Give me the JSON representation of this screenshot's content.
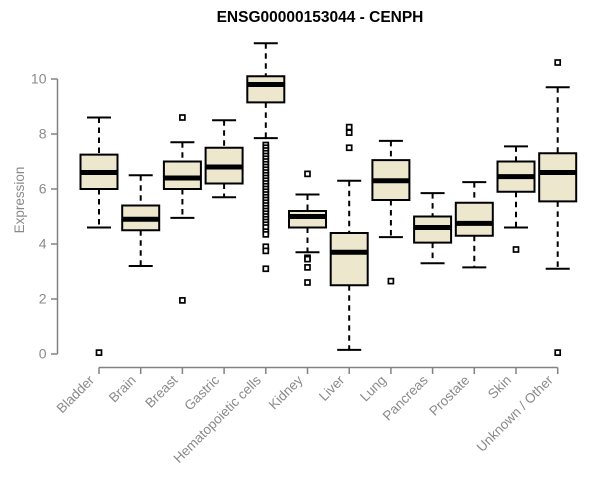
{
  "chart_data": {
    "type": "boxplot",
    "title": "ENSG00000153044 - CENPH",
    "ylabel": "Expression",
    "xlabel": "",
    "ylim": [
      0,
      11.5
    ],
    "yticks": [
      0,
      2,
      4,
      6,
      8,
      10
    ],
    "grid": false,
    "legend": "none",
    "categories": [
      "Bladder",
      "Brain",
      "Breast",
      "Gastric",
      "Hematopoietic cells",
      "Kidney",
      "Liver",
      "Lung",
      "Pancreas",
      "Prostate",
      "Skin",
      "Unknown / Other"
    ],
    "boxes": [
      {
        "category": "Bladder",
        "whisker_low": 4.6,
        "q1": 6.0,
        "median": 6.6,
        "q3": 7.25,
        "whisker_high": 8.6,
        "outliers": [
          0.05
        ]
      },
      {
        "category": "Brain",
        "whisker_low": 3.2,
        "q1": 4.5,
        "median": 4.9,
        "q3": 5.4,
        "whisker_high": 6.5,
        "outliers": []
      },
      {
        "category": "Breast",
        "whisker_low": 4.95,
        "q1": 6.0,
        "median": 6.4,
        "q3": 7.0,
        "whisker_high": 7.7,
        "outliers": [
          8.6,
          1.95
        ]
      },
      {
        "category": "Gastric",
        "whisker_low": 5.7,
        "q1": 6.2,
        "median": 6.8,
        "q3": 7.5,
        "whisker_high": 8.5,
        "outliers": []
      },
      {
        "category": "Hematopoietic cells",
        "whisker_low": 7.85,
        "q1": 9.15,
        "median": 9.8,
        "q3": 10.1,
        "whisker_high": 11.3,
        "outliers": [
          7.6,
          7.5,
          7.4,
          7.3,
          7.2,
          7.1,
          7.0,
          6.9,
          6.8,
          6.7,
          6.6,
          6.5,
          6.4,
          6.3,
          6.2,
          6.1,
          6.0,
          5.9,
          5.8,
          5.7,
          5.6,
          5.5,
          5.4,
          5.3,
          5.2,
          5.1,
          5.0,
          4.9,
          4.8,
          4.7,
          4.6,
          4.45,
          4.35,
          3.9,
          3.75,
          3.1
        ]
      },
      {
        "category": "Kidney",
        "whisker_low": 3.7,
        "q1": 4.6,
        "median": 5.0,
        "q3": 5.2,
        "whisker_high": 5.8,
        "outliers": [
          6.55,
          3.5,
          3.45,
          3.15,
          2.6
        ]
      },
      {
        "category": "Liver",
        "whisker_low": 0.15,
        "q1": 2.5,
        "median": 3.7,
        "q3": 4.4,
        "whisker_high": 6.3,
        "outliers": [
          8.25,
          8.05,
          7.5
        ]
      },
      {
        "category": "Lung",
        "whisker_low": 4.25,
        "q1": 5.6,
        "median": 6.3,
        "q3": 7.05,
        "whisker_high": 7.75,
        "outliers": [
          2.65
        ]
      },
      {
        "category": "Pancreas",
        "whisker_low": 3.3,
        "q1": 4.05,
        "median": 4.6,
        "q3": 5.0,
        "whisker_high": 5.85,
        "outliers": []
      },
      {
        "category": "Prostate",
        "whisker_low": 3.15,
        "q1": 4.3,
        "median": 4.75,
        "q3": 5.5,
        "whisker_high": 6.25,
        "outliers": []
      },
      {
        "category": "Skin",
        "whisker_low": 4.6,
        "q1": 5.9,
        "median": 6.45,
        "q3": 7.0,
        "whisker_high": 7.55,
        "outliers": [
          3.8
        ]
      },
      {
        "category": "Unknown / Other",
        "whisker_low": 3.1,
        "q1": 5.55,
        "median": 6.6,
        "q3": 7.3,
        "whisker_high": 9.7,
        "outliers": [
          10.6,
          0.05
        ]
      }
    ],
    "colors": {
      "background": "#FFFFFF",
      "box_fill": "#EDE7CD",
      "box_stroke": "#000000",
      "median": "#000000",
      "whisker": "#000000",
      "outlier_stroke": "#000000",
      "outlier_fill": "#FFFFFF",
      "axis": "#828282",
      "tick_label": "#8A8A8A",
      "title": "#000000"
    }
  }
}
